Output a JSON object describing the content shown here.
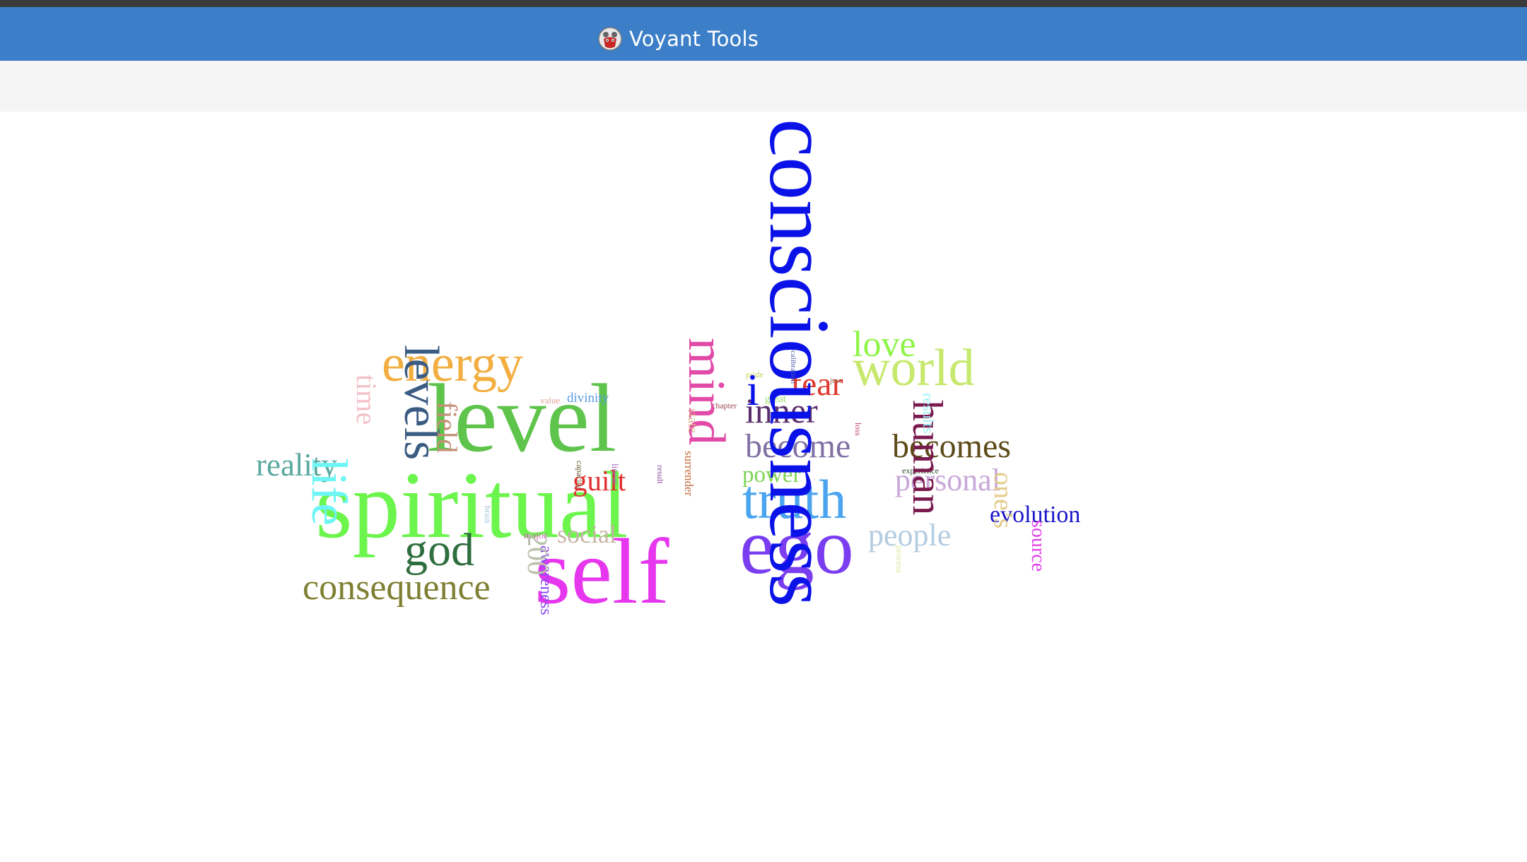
{
  "header": {
    "title": "Voyant Tools",
    "logo_icon": "voyant-logo-icon"
  },
  "cloud": {
    "words": [
      {
        "text": "consciousness",
        "color": "#0a12e8"
      },
      {
        "text": "spiritual",
        "color": "#6cf54c"
      },
      {
        "text": "level",
        "color": "#5fc44c"
      },
      {
        "text": "self",
        "color": "#e636ee"
      },
      {
        "text": "ego",
        "color": "#7a3ef0"
      },
      {
        "text": "truth",
        "color": "#4aa4f0"
      },
      {
        "text": "energy",
        "color": "#f2ae40"
      },
      {
        "text": "mind",
        "color": "#e24aa8"
      },
      {
        "text": "levels",
        "color": "#3b5c82"
      },
      {
        "text": "life",
        "color": "#6ef5f5"
      },
      {
        "text": "god",
        "color": "#2f6e3e"
      },
      {
        "text": "consequence",
        "color": "#7f7f33"
      },
      {
        "text": "world",
        "color": "#c6e86c"
      },
      {
        "text": "love",
        "color": "#8ef548"
      },
      {
        "text": "human",
        "color": "#7a1a4e"
      },
      {
        "text": "becomes",
        "color": "#5c4a18"
      },
      {
        "text": "become",
        "color": "#8070a4"
      },
      {
        "text": "inner",
        "color": "#5a2e6c"
      },
      {
        "text": "fear",
        "color": "#e0382e"
      },
      {
        "text": "reality",
        "color": "#5aa8a0"
      },
      {
        "text": "personal",
        "color": "#c8a8d8"
      },
      {
        "text": "people",
        "color": "#b4cce0"
      },
      {
        "text": "evolution",
        "color": "#1a14c8"
      },
      {
        "text": "power",
        "color": "#7cd454"
      },
      {
        "text": "guilt",
        "color": "#e02e2e"
      },
      {
        "text": "social",
        "color": "#c4b4a4"
      },
      {
        "text": "time",
        "color": "#f4c0c8"
      },
      {
        "text": "field",
        "color": "#c49078"
      },
      {
        "text": "one’s",
        "color": "#e4cc8c"
      },
      {
        "text": "source",
        "color": "#e03ce8"
      },
      {
        "text": "awareness",
        "color": "#8a4af0"
      },
      {
        "text": "200",
        "color": "#b8c0ac"
      },
      {
        "text": "results",
        "color": "#9cf0f4"
      },
      {
        "text": "divinity",
        "color": "#5a9ce4"
      },
      {
        "text": "state",
        "color": "#e0b090"
      },
      {
        "text": "surrender",
        "color": "#c46a3c"
      },
      {
        "text": "linear",
        "color": "#a46ab8"
      },
      {
        "text": "capacity",
        "color": "#6a5a2c"
      },
      {
        "text": "result",
        "color": "#8c4c9c"
      },
      {
        "text": "brain",
        "color": "#9cc0d4"
      },
      {
        "text": "major",
        "color": "#e05cc4"
      },
      {
        "text": "value",
        "color": "#e0a098"
      },
      {
        "text": "chapter",
        "color": "#9c4c5c"
      },
      {
        "text": "great",
        "color": "#9ce068"
      },
      {
        "text": "pride",
        "color": "#c4d44c"
      },
      {
        "text": "calibration",
        "color": "#4a5cac"
      },
      {
        "text": "just",
        "color": "#8c5c3c"
      },
      {
        "text": "loss",
        "color": "#c43c6c"
      },
      {
        "text": "experience",
        "color": "#2e4e2e"
      },
      {
        "text": "process",
        "color": "#dce89c"
      },
      {
        "text": "i",
        "color": "#0a12e8"
      }
    ]
  }
}
